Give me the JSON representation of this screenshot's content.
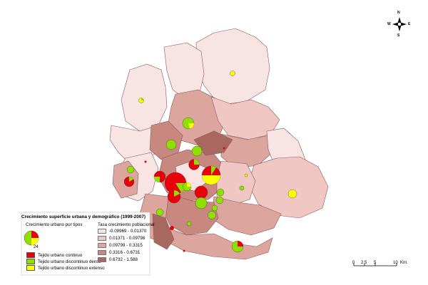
{
  "legend": {
    "title": "Crecimiento superficie urbana y demográfico (1999-2007)",
    "growth_heading": "Crecimiento urbano por tipos",
    "sample_value": "24",
    "categories": [
      {
        "label": "Tejido urbano continuo",
        "color": "#e8000b"
      },
      {
        "label": "Tejido urbano discontinuo denso",
        "color": "#8fe000"
      },
      {
        "label": "Tejido urbano discontinuo extenso",
        "color": "#ffff00"
      }
    ],
    "pop_heading": "Tasa crecimiento poblacional",
    "classes": [
      {
        "label": "-0.09969 - 0.01370",
        "color": "#f9e4e4"
      },
      {
        "label": "0.01371 - 0.09798",
        "color": "#f0c7c3"
      },
      {
        "label": "0.09799 - 0.3315",
        "color": "#dca59e"
      },
      {
        "label": "0.3316 - 0.6731",
        "color": "#c8877f"
      },
      {
        "label": "0.6732 - 1.588",
        "color": "#a86860"
      }
    ]
  },
  "scale": {
    "ticks": [
      "0",
      "2.5",
      "5",
      "10"
    ],
    "unit": "Km."
  },
  "compass": {
    "n": "N",
    "s": "S",
    "e": "E",
    "w": "W"
  }
}
